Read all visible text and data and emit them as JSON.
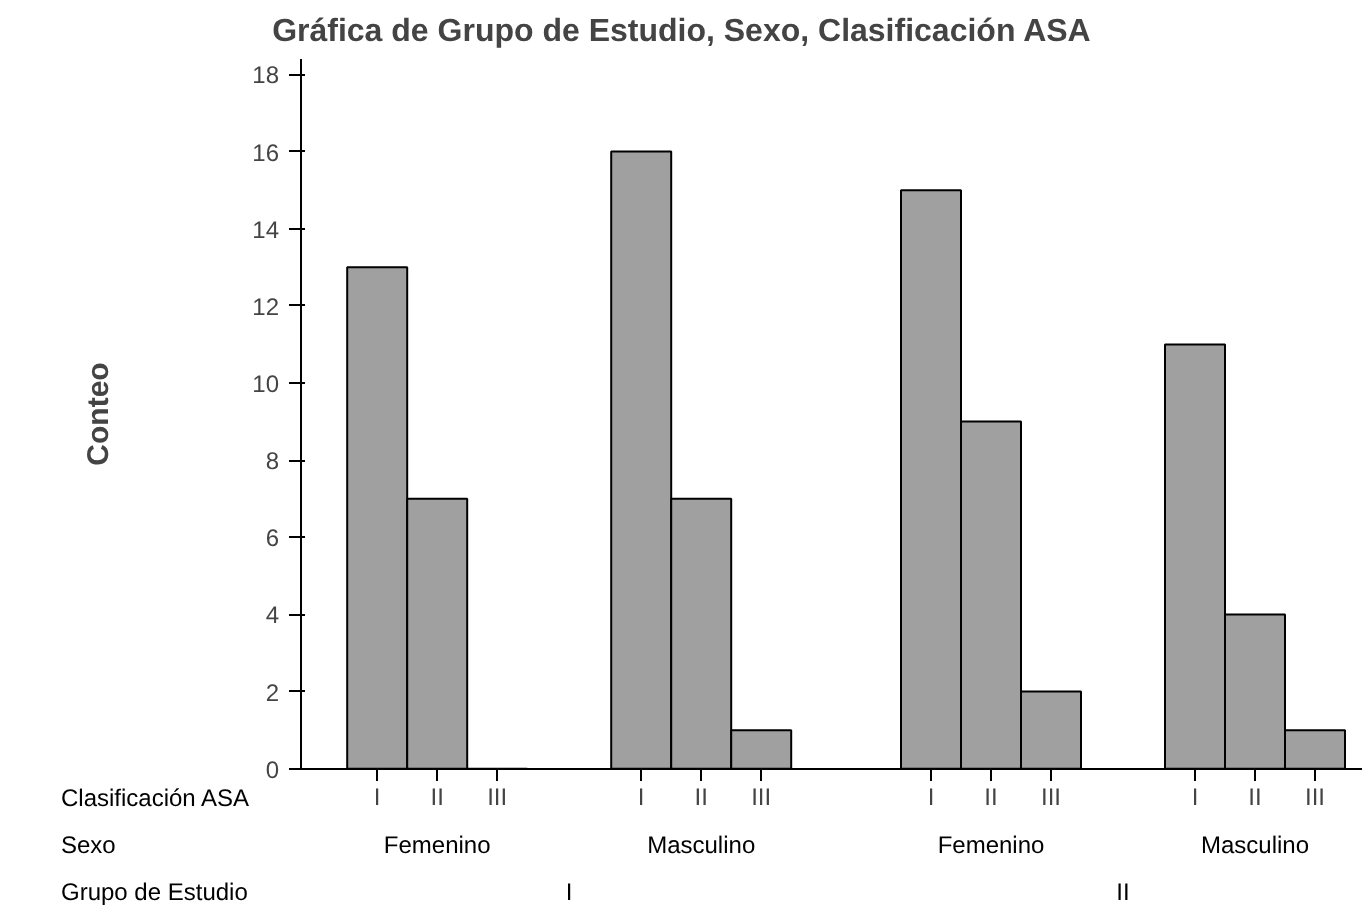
{
  "chart_data": {
    "type": "bar",
    "title": "Gráfica de Grupo de Estudio, Sexo, Clasificación ASA",
    "ylabel": "Conteo",
    "categories": [
      "I",
      "II",
      "III",
      "I",
      "II",
      "III",
      "I",
      "II",
      "III",
      "I",
      "II",
      "III"
    ],
    "values": [
      13,
      7,
      0,
      16,
      7,
      1,
      15,
      9,
      2,
      11,
      4,
      1
    ],
    "color": "#a0a0a0",
    "ylim": [
      0,
      18.4
    ],
    "yticks": [
      0,
      2,
      4,
      6,
      8,
      10,
      12,
      14,
      16,
      18
    ],
    "grid": false,
    "annotations": [
      "Clasificación ASA",
      "Sexo",
      "Grupo de Estudio",
      "Femenino",
      "Masculino",
      "Femenino",
      "Masculino",
      "I",
      "II"
    ]
  }
}
